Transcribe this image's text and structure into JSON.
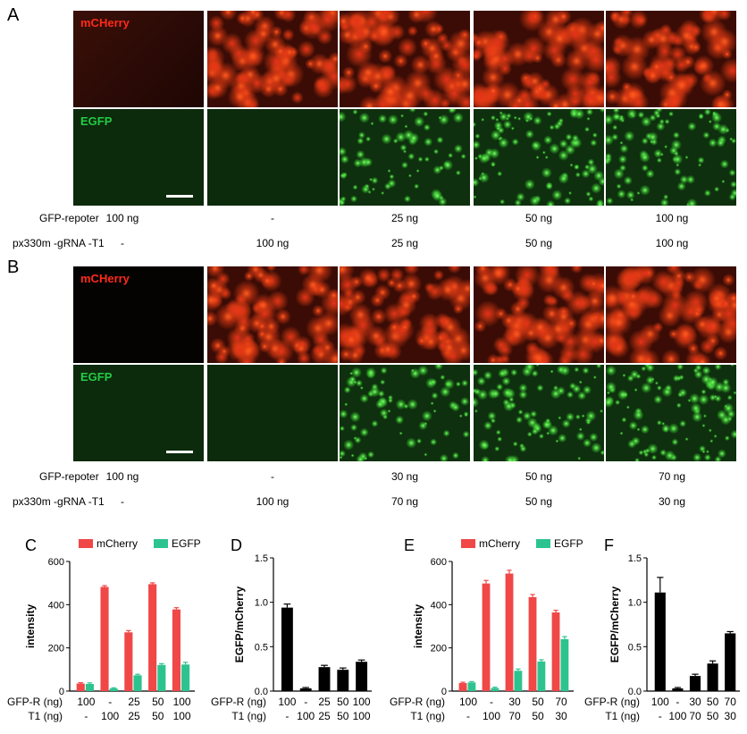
{
  "panels": {
    "A": {
      "letter": "A",
      "rows": [
        {
          "label": "GFP-repoter",
          "values": [
            "100 ng",
            "-",
            "25 ng",
            "50 ng",
            "100 ng"
          ]
        },
        {
          "label": "px330m -gRNA -T1",
          "values": [
            "-",
            "100 ng",
            "25 ng",
            "50 ng",
            "100 ng"
          ]
        }
      ],
      "mcherry_label": "mCHerry",
      "egfp_label": "EGFP",
      "red_intensity": [
        0.05,
        0.95,
        0.9,
        1.0,
        0.95
      ],
      "green_intensity": [
        0.08,
        0.05,
        0.45,
        0.75,
        0.7
      ]
    },
    "B": {
      "letter": "B",
      "rows": [
        {
          "label": "GFP-repoter",
          "values": [
            "100 ng",
            "-",
            "30 ng",
            "50 ng",
            "70 ng"
          ]
        },
        {
          "label": "px330m -gRNA -T1",
          "values": [
            "-",
            "100 ng",
            "70 ng",
            "50 ng",
            "30 ng"
          ]
        }
      ],
      "mcherry_label": "mCHerry",
      "egfp_label": "EGFP",
      "red_intensity": [
        0.0,
        1.0,
        0.95,
        0.95,
        0.9
      ],
      "green_intensity": [
        0.08,
        0.05,
        0.5,
        0.65,
        0.85
      ]
    }
  },
  "colors": {
    "mcherry": "#f04747",
    "egfp": "#2dc38f",
    "ratio": "#000000"
  },
  "chart_data": [
    {
      "letter": "C",
      "type": "bar",
      "ylabel": "intensity",
      "ylim": [
        0,
        600
      ],
      "yticks": [
        0,
        200,
        400,
        600
      ],
      "legend": [
        "mCherry",
        "EGFP"
      ],
      "row_labels": [
        "GFP-R (ng)",
        "T1 (ng)"
      ],
      "categories": [
        [
          "100",
          "-"
        ],
        [
          "-",
          "100"
        ],
        [
          "25",
          "25"
        ],
        [
          "50",
          "50"
        ],
        [
          "100",
          "100"
        ]
      ],
      "series": [
        {
          "name": "mCherry",
          "values": [
            35,
            482,
            272,
            495,
            378
          ],
          "errors": [
            4,
            6,
            8,
            6,
            8
          ]
        },
        {
          "name": "EGFP",
          "values": [
            33,
            12,
            73,
            121,
            123
          ],
          "errors": [
            5,
            3,
            5,
            6,
            10
          ]
        }
      ]
    },
    {
      "letter": "D",
      "type": "bar",
      "ylabel": "EGFP/mCherry",
      "ylim": [
        0,
        1.5
      ],
      "yticks": [
        "0.0",
        "0.5",
        "1.0",
        "1.5"
      ],
      "row_labels": [
        "GFP-R (ng)",
        "T1 (ng)"
      ],
      "categories": [
        [
          "100",
          "-"
        ],
        [
          "-",
          "100"
        ],
        [
          "25",
          "25"
        ],
        [
          "50",
          "50"
        ],
        [
          "100",
          "100"
        ]
      ],
      "series": [
        {
          "values": [
            0.94,
            0.03,
            0.27,
            0.24,
            0.33
          ],
          "errors": [
            0.04,
            0.01,
            0.02,
            0.02,
            0.02
          ]
        }
      ]
    },
    {
      "letter": "E",
      "type": "bar",
      "ylabel": "intensity",
      "ylim": [
        0,
        600
      ],
      "yticks": [
        0,
        200,
        400,
        600
      ],
      "legend": [
        "mCherry",
        "EGFP"
      ],
      "row_labels": [
        "GFP-R (ng)",
        "T1 (ng)"
      ],
      "categories": [
        [
          "100",
          "-"
        ],
        [
          "-",
          "100"
        ],
        [
          "30",
          "70"
        ],
        [
          "50",
          "50"
        ],
        [
          "70",
          "30"
        ]
      ],
      "series": [
        {
          "name": "mCherry",
          "values": [
            37,
            498,
            544,
            435,
            364
          ],
          "errors": [
            4,
            14,
            15,
            12,
            10
          ]
        },
        {
          "name": "EGFP",
          "values": [
            40,
            14,
            94,
            137,
            240
          ],
          "errors": [
            4,
            4,
            8,
            8,
            12
          ]
        }
      ]
    },
    {
      "letter": "F",
      "type": "bar",
      "ylabel": "EGFP/mCherry",
      "ylim": [
        0,
        1.5
      ],
      "yticks": [
        "0.0",
        "0.5",
        "1.0",
        "1.5"
      ],
      "row_labels": [
        "GFP-R (ng)",
        "T1 (ng)"
      ],
      "categories": [
        [
          "100",
          "-"
        ],
        [
          "-",
          "100"
        ],
        [
          "30",
          "70"
        ],
        [
          "50",
          "50"
        ],
        [
          "70",
          "30"
        ]
      ],
      "series": [
        {
          "values": [
            1.11,
            0.03,
            0.17,
            0.31,
            0.65
          ],
          "errors": [
            0.17,
            0.01,
            0.02,
            0.03,
            0.02
          ]
        }
      ]
    }
  ]
}
